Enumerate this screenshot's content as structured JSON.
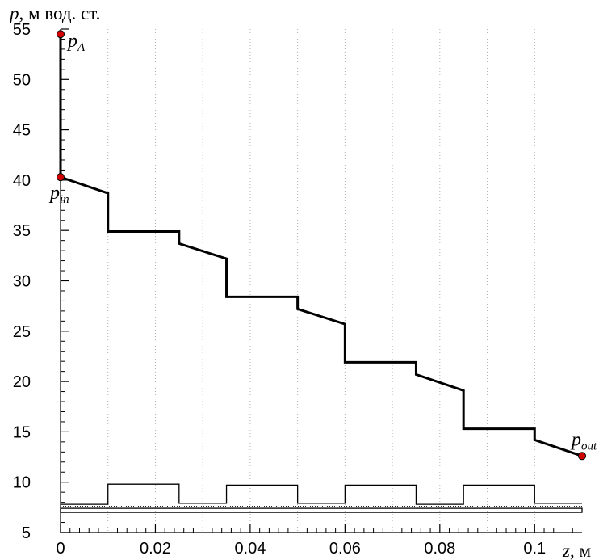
{
  "chart_data": {
    "type": "line",
    "y_title": {
      "symbol": "p",
      "unit": ", м вод. ст."
    },
    "x_title": {
      "symbol": "z",
      "unit": ", м"
    },
    "xlim": [
      0,
      0.11
    ],
    "ylim": [
      5,
      55
    ],
    "x_ticks": [
      {
        "value": 0,
        "label": "0"
      },
      {
        "value": 0.02,
        "label": "0.02"
      },
      {
        "value": 0.04,
        "label": "0.04"
      },
      {
        "value": 0.06,
        "label": "0.06"
      },
      {
        "value": 0.08,
        "label": "0.08"
      },
      {
        "value": 0.1,
        "label": "0.1"
      }
    ],
    "y_ticks": [
      {
        "value": 5,
        "label": "5"
      },
      {
        "value": 10,
        "label": "10"
      },
      {
        "value": 15,
        "label": "15"
      },
      {
        "value": 20,
        "label": "20"
      },
      {
        "value": 25,
        "label": "25"
      },
      {
        "value": 30,
        "label": "30"
      },
      {
        "value": 35,
        "label": "35"
      },
      {
        "value": 40,
        "label": "40"
      },
      {
        "value": 45,
        "label": "45"
      },
      {
        "value": 50,
        "label": "50"
      },
      {
        "value": 55,
        "label": "55"
      }
    ],
    "grid": {
      "vertical": true,
      "style": "dotted"
    },
    "series": [
      {
        "x": [
          0,
          0,
          0.01,
          0.01,
          0.025,
          0.025,
          0.035,
          0.035,
          0.05,
          0.05,
          0.06,
          0.06,
          0.075,
          0.075,
          0.085,
          0.085,
          0.1,
          0.1,
          0.11
        ],
        "y": [
          54.5,
          40.3,
          38.7,
          34.9,
          34.9,
          33.7,
          32.2,
          28.4,
          28.4,
          27.2,
          25.7,
          21.9,
          21.9,
          20.7,
          19.1,
          15.3,
          15.3,
          14.2,
          12.6
        ]
      }
    ],
    "geometry_profile": {
      "x": [
        0,
        0.01,
        0.01,
        0.025,
        0.025,
        0.035,
        0.035,
        0.05,
        0.05,
        0.06,
        0.06,
        0.075,
        0.075,
        0.085,
        0.085,
        0.1,
        0.1,
        0.11
      ],
      "y": [
        7.8,
        7.8,
        9.8,
        9.8,
        7.9,
        7.9,
        9.7,
        9.7,
        7.9,
        7.9,
        9.7,
        9.7,
        7.8,
        7.8,
        9.7,
        9.7,
        7.9,
        7.9
      ],
      "axis_line_y": 7.6,
      "base_strip": [
        7.0,
        7.4
      ]
    },
    "annotations": [
      {
        "symbol": "p",
        "sub": "A",
        "x": 0,
        "y": 54.5
      },
      {
        "symbol": "p",
        "sub": "in",
        "x": 0,
        "y": 40.3
      },
      {
        "symbol": "p",
        "sub": "out",
        "x": 0.11,
        "y": 12.6
      }
    ],
    "colors": {
      "line": "#000000",
      "marker": "#d40000",
      "grid": "#b0b0b0"
    }
  }
}
